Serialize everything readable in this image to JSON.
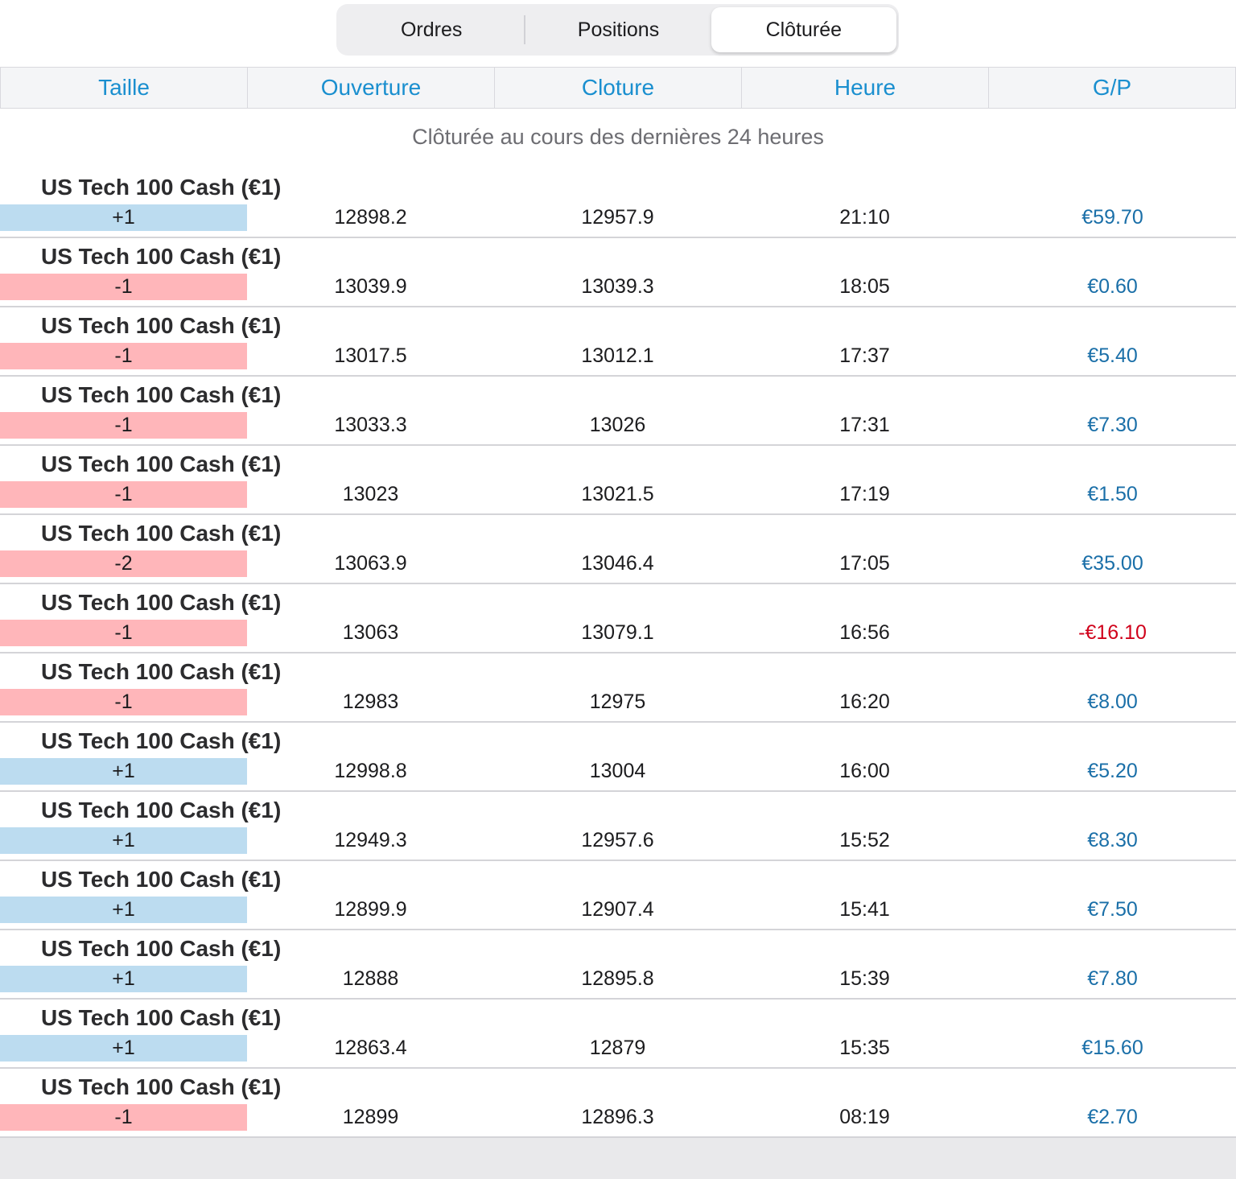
{
  "tabs": [
    {
      "label": "Ordres",
      "active": false
    },
    {
      "label": "Positions",
      "active": false
    },
    {
      "label": "Clôturée",
      "active": true
    }
  ],
  "columns": [
    "Taille",
    "Ouverture",
    "Cloture",
    "Heure",
    "G/P"
  ],
  "subtitle": "Clôturée au cours des dernières 24 heures",
  "colors": {
    "accent": "#1a8fcf",
    "buy": "#bcdcf0",
    "sell": "#ffb6ba",
    "profit": "#1a6fa8",
    "loss": "#d0021b"
  },
  "rows": [
    {
      "instrument": "US Tech 100 Cash (€1)",
      "size": "+1",
      "side": "buy",
      "open": "12898.2",
      "close": "12957.9",
      "time": "21:10",
      "pl": "€59.70",
      "pl_sign": "pos"
    },
    {
      "instrument": "US Tech 100 Cash (€1)",
      "size": "-1",
      "side": "sell",
      "open": "13039.9",
      "close": "13039.3",
      "time": "18:05",
      "pl": "€0.60",
      "pl_sign": "pos"
    },
    {
      "instrument": "US Tech 100 Cash (€1)",
      "size": "-1",
      "side": "sell",
      "open": "13017.5",
      "close": "13012.1",
      "time": "17:37",
      "pl": "€5.40",
      "pl_sign": "pos"
    },
    {
      "instrument": "US Tech 100 Cash (€1)",
      "size": "-1",
      "side": "sell",
      "open": "13033.3",
      "close": "13026",
      "time": "17:31",
      "pl": "€7.30",
      "pl_sign": "pos"
    },
    {
      "instrument": "US Tech 100 Cash (€1)",
      "size": "-1",
      "side": "sell",
      "open": "13023",
      "close": "13021.5",
      "time": "17:19",
      "pl": "€1.50",
      "pl_sign": "pos"
    },
    {
      "instrument": "US Tech 100 Cash (€1)",
      "size": "-2",
      "side": "sell",
      "open": "13063.9",
      "close": "13046.4",
      "time": "17:05",
      "pl": "€35.00",
      "pl_sign": "pos"
    },
    {
      "instrument": "US Tech 100 Cash (€1)",
      "size": "-1",
      "side": "sell",
      "open": "13063",
      "close": "13079.1",
      "time": "16:56",
      "pl": "-€16.10",
      "pl_sign": "neg"
    },
    {
      "instrument": "US Tech 100 Cash (€1)",
      "size": "-1",
      "side": "sell",
      "open": "12983",
      "close": "12975",
      "time": "16:20",
      "pl": "€8.00",
      "pl_sign": "pos"
    },
    {
      "instrument": "US Tech 100 Cash (€1)",
      "size": "+1",
      "side": "buy",
      "open": "12998.8",
      "close": "13004",
      "time": "16:00",
      "pl": "€5.20",
      "pl_sign": "pos"
    },
    {
      "instrument": "US Tech 100 Cash (€1)",
      "size": "+1",
      "side": "buy",
      "open": "12949.3",
      "close": "12957.6",
      "time": "15:52",
      "pl": "€8.30",
      "pl_sign": "pos"
    },
    {
      "instrument": "US Tech 100 Cash (€1)",
      "size": "+1",
      "side": "buy",
      "open": "12899.9",
      "close": "12907.4",
      "time": "15:41",
      "pl": "€7.50",
      "pl_sign": "pos"
    },
    {
      "instrument": "US Tech 100 Cash (€1)",
      "size": "+1",
      "side": "buy",
      "open": "12888",
      "close": "12895.8",
      "time": "15:39",
      "pl": "€7.80",
      "pl_sign": "pos"
    },
    {
      "instrument": "US Tech 100 Cash (€1)",
      "size": "+1",
      "side": "buy",
      "open": "12863.4",
      "close": "12879",
      "time": "15:35",
      "pl": "€15.60",
      "pl_sign": "pos"
    },
    {
      "instrument": "US Tech 100 Cash (€1)",
      "size": "-1",
      "side": "sell",
      "open": "12899",
      "close": "12896.3",
      "time": "08:19",
      "pl": "€2.70",
      "pl_sign": "pos"
    }
  ]
}
